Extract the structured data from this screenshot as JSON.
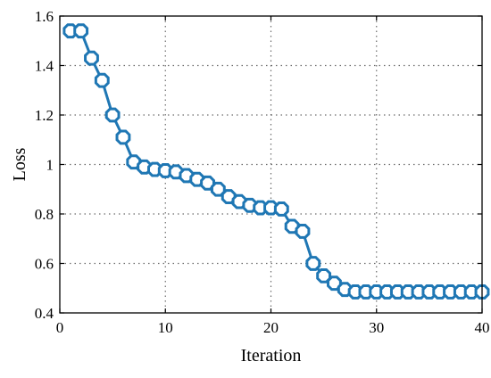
{
  "chart_data": {
    "type": "line",
    "xlabel": "Iteration",
    "ylabel": "Loss",
    "xlim": [
      0,
      40
    ],
    "ylim": [
      0.4,
      1.6
    ],
    "xticks": [
      0,
      10,
      20,
      30,
      40
    ],
    "yticks": [
      0.4,
      0.6,
      0.8,
      1.0,
      1.2,
      1.4,
      1.6
    ],
    "xtick_labels": [
      "0",
      "10",
      "20",
      "30",
      "40"
    ],
    "ytick_labels": [
      "0.4",
      "0.6",
      "0.8",
      "1",
      "1.2",
      "1.4",
      "1.6"
    ],
    "grid": true,
    "series": [
      {
        "color": "#1f77b4",
        "marker": "octagon",
        "x": [
          1,
          2,
          3,
          4,
          5,
          6,
          7,
          8,
          9,
          10,
          11,
          12,
          13,
          14,
          15,
          16,
          17,
          18,
          19,
          20,
          21,
          22,
          23,
          24,
          25,
          26,
          27,
          28,
          29,
          30,
          31,
          32,
          33,
          34,
          35,
          36,
          37,
          38,
          39,
          40
        ],
        "y": [
          1.54,
          1.54,
          1.43,
          1.34,
          1.2,
          1.11,
          1.01,
          0.99,
          0.98,
          0.975,
          0.97,
          0.955,
          0.94,
          0.925,
          0.9,
          0.87,
          0.85,
          0.835,
          0.825,
          0.825,
          0.82,
          0.75,
          0.73,
          0.6,
          0.55,
          0.52,
          0.495,
          0.485,
          0.485,
          0.485,
          0.485,
          0.485,
          0.485,
          0.485,
          0.485,
          0.485,
          0.485,
          0.485,
          0.485,
          0.485
        ]
      }
    ]
  }
}
